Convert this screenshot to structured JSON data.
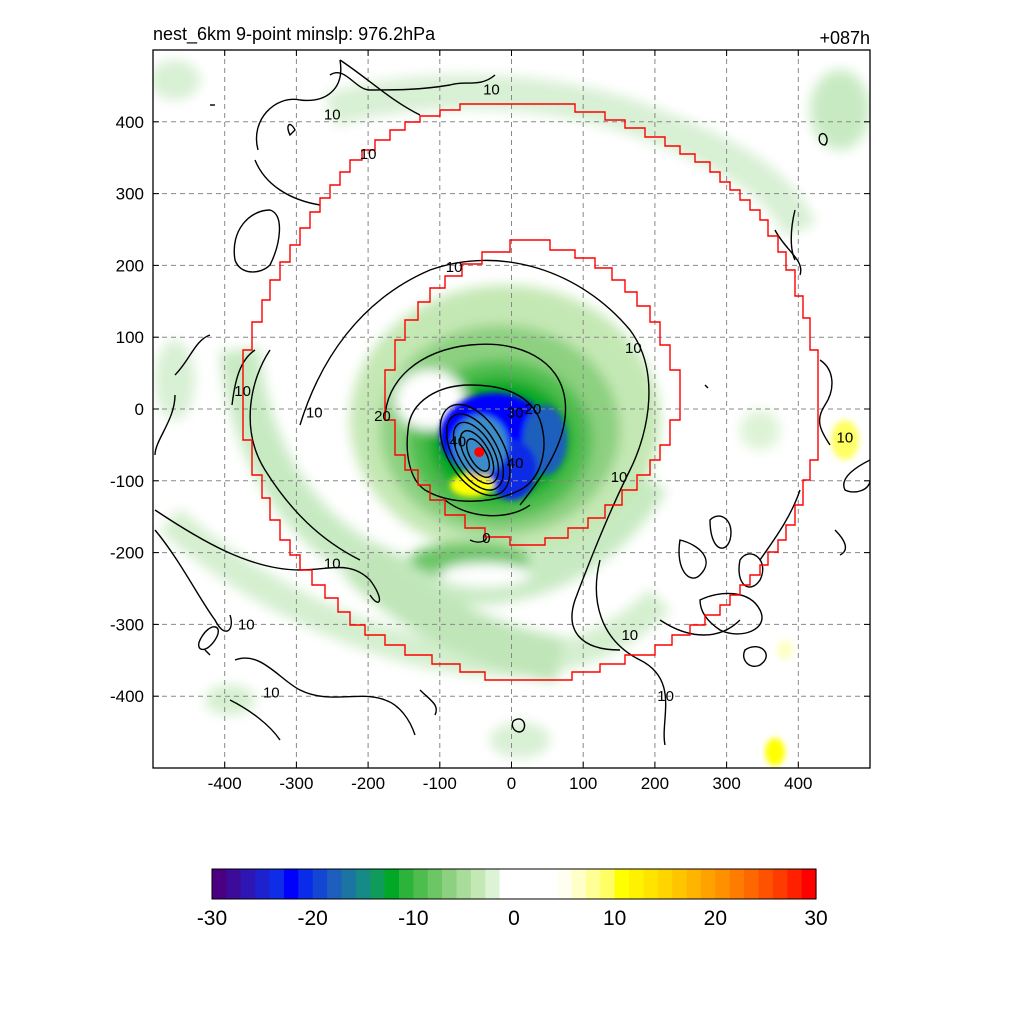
{
  "chart_data": {
    "type": "heatmap",
    "title_left": "nest_6km  9-point minslp: 976.2hPa",
    "title_right": "+087h",
    "xlabel": "",
    "ylabel": "",
    "xlim": [
      -500,
      500
    ],
    "ylim": [
      -500,
      500
    ],
    "x_ticks": [
      -400,
      -300,
      -200,
      -100,
      0,
      100,
      200,
      300,
      400
    ],
    "y_ticks": [
      400,
      300,
      200,
      100,
      0,
      -100,
      -200,
      -300,
      -400
    ],
    "grid": true,
    "center_marker": {
      "x": -45,
      "y": -60,
      "color": "#ff0000"
    },
    "contour_labels": [
      {
        "text": "10",
        "x": -28,
        "y": 445
      },
      {
        "text": "10",
        "x": -250,
        "y": 410
      },
      {
        "text": "10",
        "x": -200,
        "y": 355
      },
      {
        "text": "10",
        "x": -80,
        "y": 198
      },
      {
        "text": "10",
        "x": 170,
        "y": 85
      },
      {
        "text": "10",
        "x": -375,
        "y": 25
      },
      {
        "text": "10",
        "x": -275,
        "y": -5
      },
      {
        "text": "20",
        "x": -180,
        "y": -10
      },
      {
        "text": "30",
        "x": 5,
        "y": -5
      },
      {
        "text": "20",
        "x": 30,
        "y": 0
      },
      {
        "text": "40",
        "x": -75,
        "y": -45
      },
      {
        "text": "40",
        "x": 5,
        "y": -75
      },
      {
        "text": "10",
        "x": 150,
        "y": -95
      },
      {
        "text": "0",
        "x": -35,
        "y": -180
      },
      {
        "text": "10",
        "x": -250,
        "y": -215
      },
      {
        "text": "10",
        "x": -370,
        "y": -300
      },
      {
        "text": "10",
        "x": 165,
        "y": -315
      },
      {
        "text": "10",
        "x": -335,
        "y": -395
      },
      {
        "text": "10",
        "x": 215,
        "y": -400
      },
      {
        "text": "10",
        "x": 465,
        "y": -40
      }
    ],
    "colorbar": {
      "vmin": -30,
      "vmax": 30,
      "ticks": [
        "-30",
        "-20",
        "-10",
        "0",
        "10",
        "20",
        "30"
      ],
      "colors": [
        "#4b0082",
        "#3c0b9a",
        "#2d16b4",
        "#1e21ce",
        "#0f2ce6",
        "#0000ff",
        "#0b2bea",
        "#1446d4",
        "#1e5ebd",
        "#1b74a2",
        "#168a86",
        "#0f9c5a",
        "#00a826",
        "#2bb33a",
        "#4dbd4d",
        "#6cc666",
        "#8cd080",
        "#a8dc9a",
        "#c4e8b4",
        "#ddf3d6",
        "#ffffff",
        "#ffffff",
        "#ffffff",
        "#ffffff",
        "#fffef0",
        "#ffffc8",
        "#ffff96",
        "#ffff64",
        "#ffff00",
        "#fff200",
        "#ffe400",
        "#ffd500",
        "#ffc600",
        "#ffb400",
        "#ffa200",
        "#ff9000",
        "#ff7c00",
        "#ff6800",
        "#ff5200",
        "#ff3c00",
        "#ff2000",
        "#ff0000"
      ]
    }
  }
}
